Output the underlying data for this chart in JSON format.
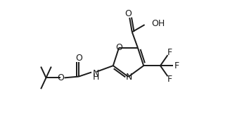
{
  "background_color": "#ffffff",
  "line_color": "#1a1a1a",
  "line_width": 1.4,
  "font_size": 8.5,
  "figsize": [
    3.27,
    1.66
  ],
  "dpi": 100,
  "xlim": [
    0.0,
    10.0
  ],
  "ylim": [
    0.0,
    5.2
  ]
}
